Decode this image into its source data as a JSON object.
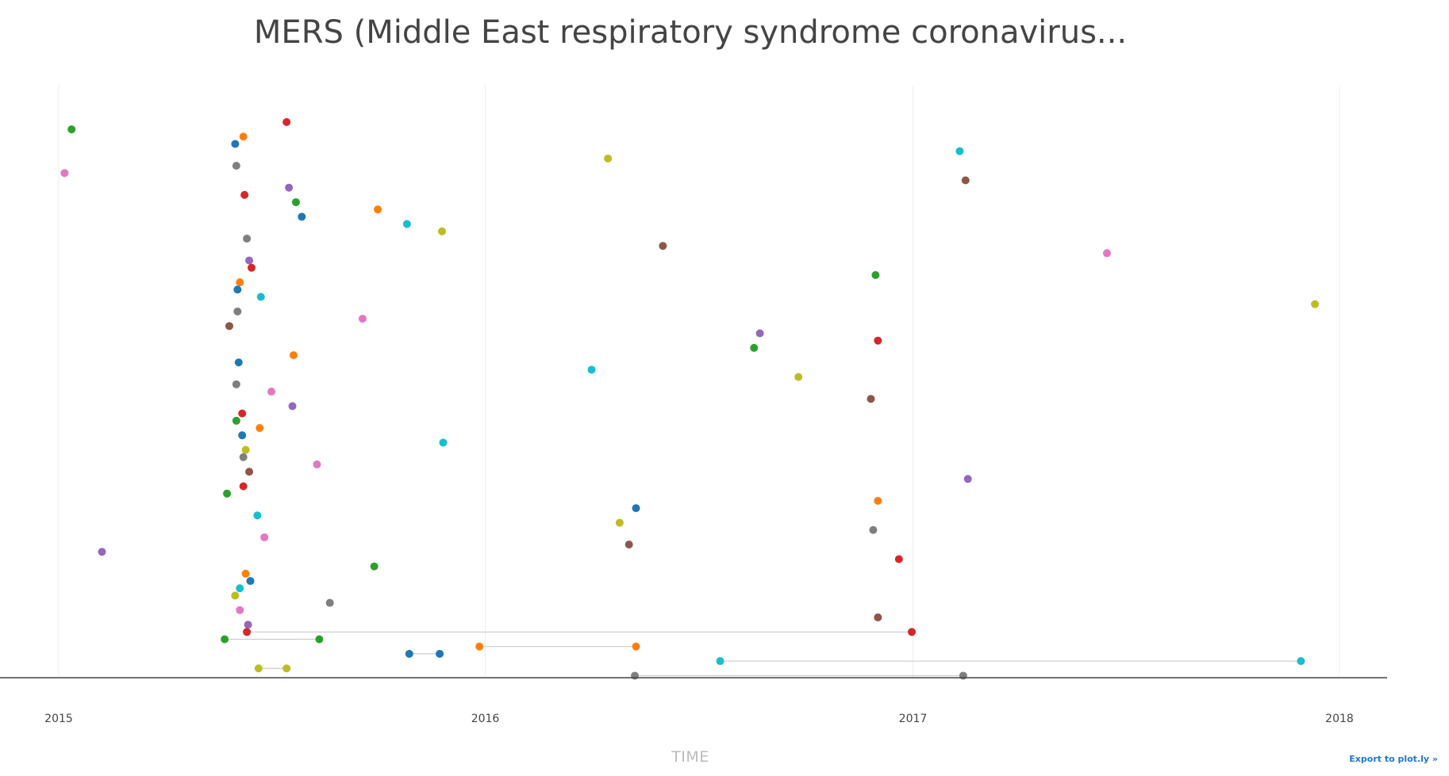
{
  "header": {
    "title": "MERS (Middle East respiratory syndrome coronavirus...",
    "export_label": "Export to plot.ly »"
  },
  "chart_data": {
    "type": "scatter",
    "title": "MERS (Middle East respiratory syndrome coronavirus...",
    "xlabel": "TIME",
    "ylabel": "",
    "x_axis_type": "date",
    "xlim": [
      "2014-12-30",
      "2018-02-20"
    ],
    "x_ticks": [
      "2015",
      "2016",
      "2017",
      "2018"
    ],
    "y_ticks": [],
    "grid": "vertical",
    "legend": "none",
    "palette": [
      "#2ca02c",
      "#ff7f0e",
      "#1f77b4",
      "#7f7f7f",
      "#d62728",
      "#9467bd",
      "#e377c2",
      "#bcbd22",
      "#17becf",
      "#8c564b"
    ],
    "rows": [
      {
        "row": 1,
        "color": "#d62728",
        "x": [
          "2015-07-15"
        ]
      },
      {
        "row": 2,
        "color": "#2ca02c",
        "x": [
          "2015-01-12"
        ]
      },
      {
        "row": 3,
        "color": "#ff7f0e",
        "x": [
          "2015-06-08"
        ]
      },
      {
        "row": 4,
        "color": "#1f77b4",
        "x": [
          "2015-06-01"
        ]
      },
      {
        "row": 5,
        "color": "#17becf",
        "x": [
          "2017-02-10"
        ]
      },
      {
        "row": 6,
        "color": "#bcbd22",
        "x": [
          "2016-04-15"
        ]
      },
      {
        "row": 7,
        "color": "#7f7f7f",
        "x": [
          "2015-06-02"
        ]
      },
      {
        "row": 8,
        "color": "#e377c2",
        "x": [
          "2015-01-06"
        ]
      },
      {
        "row": 9,
        "color": "#8c564b",
        "x": [
          "2017-02-15"
        ]
      },
      {
        "row": 10,
        "color": "#9467bd",
        "x": [
          "2015-07-17"
        ]
      },
      {
        "row": 11,
        "color": "#d62728",
        "x": [
          "2015-06-09"
        ]
      },
      {
        "row": 12,
        "color": "#2ca02c",
        "x": [
          "2015-07-23"
        ]
      },
      {
        "row": 13,
        "color": "#ff7f0e",
        "x": [
          "2015-10-01"
        ]
      },
      {
        "row": 14,
        "color": "#1f77b4",
        "x": [
          "2015-07-28"
        ]
      },
      {
        "row": 15,
        "color": "#17becf",
        "x": [
          "2015-10-26"
        ]
      },
      {
        "row": 16,
        "color": "#bcbd22",
        "x": [
          "2015-11-25"
        ]
      },
      {
        "row": 17,
        "color": "#7f7f7f",
        "x": [
          "2015-06-11"
        ]
      },
      {
        "row": 18,
        "color": "#8c564b",
        "x": [
          "2016-06-01"
        ]
      },
      {
        "row": 19,
        "color": "#e377c2",
        "x": [
          "2017-06-16"
        ]
      },
      {
        "row": 20,
        "color": "#9467bd",
        "x": [
          "2015-06-13"
        ]
      },
      {
        "row": 21,
        "color": "#d62728",
        "x": [
          "2015-06-15"
        ]
      },
      {
        "row": 22,
        "color": "#2ca02c",
        "x": [
          "2016-11-30"
        ]
      },
      {
        "row": 23,
        "color": "#ff7f0e",
        "x": [
          "2015-06-05"
        ]
      },
      {
        "row": 24,
        "color": "#1f77b4",
        "x": [
          "2015-06-03"
        ]
      },
      {
        "row": 25,
        "color": "#17becf",
        "x": [
          "2015-06-23"
        ]
      },
      {
        "row": 26,
        "color": "#bcbd22",
        "x": [
          "2017-12-11"
        ]
      },
      {
        "row": 27,
        "color": "#7f7f7f",
        "x": [
          "2015-06-03"
        ]
      },
      {
        "row": 28,
        "color": "#e377c2",
        "x": [
          "2015-09-18"
        ]
      },
      {
        "row": 29,
        "color": "#8c564b",
        "x": [
          "2015-05-27"
        ]
      },
      {
        "row": 30,
        "color": "#9467bd",
        "x": [
          "2016-08-23"
        ]
      },
      {
        "row": 31,
        "color": "#d62728",
        "x": [
          "2016-12-02"
        ]
      },
      {
        "row": 32,
        "color": "#2ca02c",
        "x": [
          "2016-08-18"
        ]
      },
      {
        "row": 33,
        "color": "#ff7f0e",
        "x": [
          "2015-07-21"
        ]
      },
      {
        "row": 34,
        "color": "#1f77b4",
        "x": [
          "2015-06-04"
        ]
      },
      {
        "row": 35,
        "color": "#17becf",
        "x": [
          "2016-04-01"
        ]
      },
      {
        "row": 36,
        "color": "#bcbd22",
        "x": [
          "2016-09-25"
        ]
      },
      {
        "row": 37,
        "color": "#7f7f7f",
        "x": [
          "2015-06-02"
        ]
      },
      {
        "row": 38,
        "color": "#e377c2",
        "x": [
          "2015-07-02"
        ]
      },
      {
        "row": 39,
        "color": "#8c564b",
        "x": [
          "2016-11-26"
        ]
      },
      {
        "row": 40,
        "color": "#9467bd",
        "x": [
          "2015-07-20"
        ]
      },
      {
        "row": 41,
        "color": "#d62728",
        "x": [
          "2015-06-07"
        ]
      },
      {
        "row": 42,
        "color": "#2ca02c",
        "x": [
          "2015-06-02"
        ]
      },
      {
        "row": 43,
        "color": "#ff7f0e",
        "x": [
          "2015-06-22"
        ]
      },
      {
        "row": 44,
        "color": "#1f77b4",
        "x": [
          "2015-06-07"
        ]
      },
      {
        "row": 45,
        "color": "#17becf",
        "x": [
          "2015-11-26"
        ]
      },
      {
        "row": 46,
        "color": "#bcbd22",
        "x": [
          "2015-06-10"
        ]
      },
      {
        "row": 47,
        "color": "#7f7f7f",
        "x": [
          "2015-06-08"
        ]
      },
      {
        "row": 48,
        "color": "#e377c2",
        "x": [
          "2015-08-10"
        ]
      },
      {
        "row": 49,
        "color": "#8c564b",
        "x": [
          "2015-06-13"
        ]
      },
      {
        "row": 50,
        "color": "#9467bd",
        "x": [
          "2017-02-17"
        ]
      },
      {
        "row": 51,
        "color": "#d62728",
        "x": [
          "2015-06-08"
        ]
      },
      {
        "row": 52,
        "color": "#2ca02c",
        "x": [
          "2015-05-25"
        ]
      },
      {
        "row": 53,
        "color": "#ff7f0e",
        "x": [
          "2016-12-02"
        ]
      },
      {
        "row": 54,
        "color": "#1f77b4",
        "x": [
          "2016-05-09"
        ]
      },
      {
        "row": 55,
        "color": "#17becf",
        "x": [
          "2015-06-20"
        ]
      },
      {
        "row": 56,
        "color": "#bcbd22",
        "x": [
          "2016-04-25"
        ]
      },
      {
        "row": 57,
        "color": "#7f7f7f",
        "x": [
          "2016-11-28"
        ]
      },
      {
        "row": 58,
        "color": "#e377c2",
        "x": [
          "2015-06-26"
        ]
      },
      {
        "row": 59,
        "color": "#8c564b",
        "x": [
          "2016-05-03"
        ]
      },
      {
        "row": 60,
        "color": "#9467bd",
        "x": [
          "2015-02-07"
        ]
      },
      {
        "row": 61,
        "color": "#d62728",
        "x": [
          "2016-12-20"
        ]
      },
      {
        "row": 62,
        "color": "#2ca02c",
        "x": [
          "2015-09-28"
        ]
      },
      {
        "row": 63,
        "color": "#ff7f0e",
        "x": [
          "2015-06-10"
        ]
      },
      {
        "row": 64,
        "color": "#1f77b4",
        "x": [
          "2015-06-14"
        ]
      },
      {
        "row": 65,
        "color": "#17becf",
        "x": [
          "2015-06-05"
        ]
      },
      {
        "row": 66,
        "color": "#bcbd22",
        "x": [
          "2015-06-01"
        ]
      },
      {
        "row": 67,
        "color": "#7f7f7f",
        "x": [
          "2015-08-21"
        ]
      },
      {
        "row": 68,
        "color": "#e377c2",
        "x": [
          "2015-06-05"
        ]
      },
      {
        "row": 69,
        "color": "#8c564b",
        "x": [
          "2016-12-02"
        ]
      },
      {
        "row": 70,
        "color": "#9467bd",
        "x": [
          "2015-06-12"
        ]
      },
      {
        "row": 71,
        "color": "#d62728",
        "x": [
          "2015-06-11",
          "2016-12-31"
        ]
      },
      {
        "row": 72,
        "color": "#2ca02c",
        "x": [
          "2015-05-23",
          "2015-08-12"
        ]
      },
      {
        "row": 73,
        "color": "#ff7f0e",
        "x": [
          "2015-12-27",
          "2016-05-09"
        ]
      },
      {
        "row": 74,
        "color": "#1f77b4",
        "x": [
          "2015-10-28",
          "2015-11-23"
        ]
      },
      {
        "row": 75,
        "color": "#17becf",
        "x": [
          "2016-07-20",
          "2017-11-29"
        ]
      },
      {
        "row": 76,
        "color": "#bcbd22",
        "x": [
          "2015-06-21",
          "2015-07-15"
        ]
      },
      {
        "row": 77,
        "color": "#7f7f7f",
        "x": [
          "2016-05-08",
          "2017-02-13"
        ]
      }
    ]
  }
}
